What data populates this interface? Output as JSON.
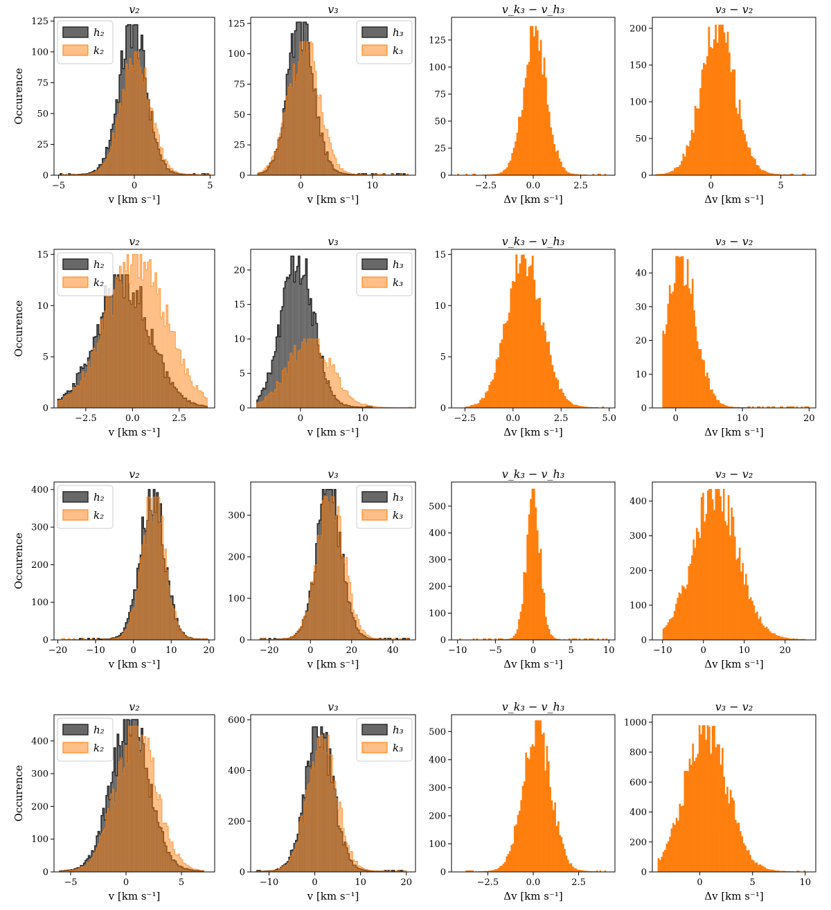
{
  "figure": {
    "colors": {
      "h": "#4d4d4d",
      "k": "#ff7f0e",
      "k_alpha": 0.5,
      "h_alpha": 0.85
    }
  },
  "chart_data": [
    {
      "row": 0,
      "col": 0,
      "type": "bar",
      "title": "v₂",
      "xlabel": "v [km s⁻¹]",
      "ylabel": "Occurence",
      "xlim": [
        -5.3,
        5.3
      ],
      "ylim": [
        0,
        128
      ],
      "xticks": [
        -5,
        0,
        5
      ],
      "xtick_labels": [
        "−5",
        "0",
        "5"
      ],
      "yticks": [
        0,
        25,
        50,
        75,
        100,
        125
      ],
      "legend": [
        "h₂",
        "k₂"
      ],
      "legend_loc": "upper-left",
      "series": [
        {
          "name": "h₂",
          "kind": "step",
          "mean": -0.1,
          "sd": 0.9,
          "peak": 122,
          "xmin": -5,
          "xmax": 5,
          "nbins": 90
        },
        {
          "name": "k₂",
          "kind": "fill",
          "mean": 0.1,
          "sd": 0.95,
          "peak": 100,
          "xmin": -5,
          "xmax": 5,
          "nbins": 90
        }
      ]
    },
    {
      "row": 0,
      "col": 1,
      "type": "bar",
      "title": "v₃",
      "xlabel": "v [km s⁻¹]",
      "ylabel": "",
      "xlim": [
        -7,
        16
      ],
      "ylim": [
        0,
        130
      ],
      "xticks": [
        0,
        10
      ],
      "xtick_labels": [
        "0",
        "10"
      ],
      "yticks": [
        0,
        25,
        50,
        75,
        100,
        125
      ],
      "legend": [
        "h₃",
        "k₃"
      ],
      "legend_loc": "upper-right",
      "series": [
        {
          "name": "h₃",
          "kind": "step",
          "mean": 0.0,
          "sd": 1.8,
          "peak": 126,
          "xmin": -6,
          "xmax": 15,
          "nbins": 90
        },
        {
          "name": "k₃",
          "kind": "fill",
          "mean": 0.4,
          "sd": 2.1,
          "peak": 110,
          "xmin": -6,
          "xmax": 15,
          "nbins": 90
        }
      ]
    },
    {
      "row": 0,
      "col": 2,
      "type": "bar",
      "title": "v_k₃ − v_h₃",
      "xlabel": "Δv [km s⁻¹]",
      "ylabel": "",
      "xlim": [
        -4.3,
        4.3
      ],
      "ylim": [
        0,
        146
      ],
      "xticks": [
        -2.5,
        0,
        2.5
      ],
      "xtick_labels": [
        "−2.5",
        "0.0",
        "2.5"
      ],
      "yticks": [
        0,
        25,
        50,
        75,
        100,
        125
      ],
      "legend": [],
      "legend_loc": "none",
      "series": [
        {
          "name": "",
          "kind": "solid",
          "mean": 0.1,
          "sd": 0.6,
          "peak": 138,
          "xmin": -4,
          "xmax": 4,
          "nbins": 90
        }
      ]
    },
    {
      "row": 0,
      "col": 3,
      "type": "bar",
      "title": "v₃ − v₂",
      "xlabel": "Δv [km s⁻¹]",
      "ylabel": "",
      "xlim": [
        -4.2,
        7.5
      ],
      "ylim": [
        0,
        215
      ],
      "xticks": [
        0,
        5
      ],
      "xtick_labels": [
        "0",
        "5"
      ],
      "yticks": [
        0,
        50,
        100,
        150,
        200
      ],
      "legend": [],
      "legend_loc": "none",
      "series": [
        {
          "name": "",
          "kind": "solid",
          "mean": 0.5,
          "sd": 1.2,
          "peak": 205,
          "xmin": -4,
          "xmax": 7,
          "nbins": 90
        }
      ]
    },
    {
      "row": 1,
      "col": 0,
      "type": "bar",
      "title": "v₂",
      "xlabel": "v [km s⁻¹]",
      "ylabel": "Occurence",
      "xlim": [
        -4.2,
        4.4
      ],
      "ylim": [
        0,
        15.5
      ],
      "xticks": [
        -2.5,
        0,
        2.5
      ],
      "xtick_labels": [
        "−2.5",
        "0.0",
        "2.5"
      ],
      "yticks": [
        0,
        5,
        10,
        15
      ],
      "legend": [
        "h₂",
        "k₂"
      ],
      "legend_loc": "upper-left",
      "series": [
        {
          "name": "h₂",
          "kind": "step",
          "mean": -0.5,
          "sd": 1.4,
          "peak": 13,
          "xmin": -4,
          "xmax": 4,
          "nbins": 80
        },
        {
          "name": "k₂",
          "kind": "fill",
          "mean": 0.2,
          "sd": 1.6,
          "peak": 15,
          "xmin": -4,
          "xmax": 4,
          "nbins": 80
        }
      ]
    },
    {
      "row": 1,
      "col": 1,
      "type": "bar",
      "title": "v₃",
      "xlabel": "v [km s⁻¹]",
      "ylabel": "",
      "xlim": [
        -8,
        18.5
      ],
      "ylim": [
        0,
        23
      ],
      "xticks": [
        0,
        10
      ],
      "xtick_labels": [
        "0",
        "10"
      ],
      "yticks": [
        0,
        5,
        10,
        15,
        20
      ],
      "legend": [
        "h₃",
        "k₃"
      ],
      "legend_loc": "upper-right",
      "series": [
        {
          "name": "h₃",
          "kind": "step",
          "mean": -0.5,
          "sd": 2.6,
          "peak": 22,
          "xmin": -7,
          "xmax": 12,
          "nbins": 80
        },
        {
          "name": "k₃",
          "kind": "fill",
          "mean": 1.5,
          "sd": 3.5,
          "peak": 10,
          "xmin": -7,
          "xmax": 18,
          "nbins": 80
        }
      ]
    },
    {
      "row": 1,
      "col": 2,
      "type": "bar",
      "title": "v_k₃ − v_h₃",
      "xlabel": "Δv [km s⁻¹]",
      "ylabel": "",
      "xlim": [
        -3.2,
        5.3
      ],
      "ylim": [
        0,
        15.5
      ],
      "xticks": [
        -2.5,
        0,
        2.5,
        5
      ],
      "xtick_labels": [
        "−2.5",
        "0.0",
        "2.5",
        "5.0"
      ],
      "yticks": [
        0,
        5,
        10,
        15
      ],
      "legend": [],
      "legend_loc": "none",
      "series": [
        {
          "name": "",
          "kind": "solid",
          "mean": 0.6,
          "sd": 0.9,
          "peak": 15,
          "xmin": -2.5,
          "xmax": 5,
          "nbins": 80
        }
      ]
    },
    {
      "row": 1,
      "col": 3,
      "type": "bar",
      "title": "v₃ − v₂",
      "xlabel": "Δv [km s⁻¹]",
      "ylabel": "",
      "xlim": [
        -3.5,
        21
      ],
      "ylim": [
        0,
        47
      ],
      "xticks": [
        0,
        10,
        20
      ],
      "xtick_labels": [
        "0",
        "10",
        "20"
      ],
      "yticks": [
        0,
        10,
        20,
        30,
        40
      ],
      "legend": [],
      "legend_loc": "none",
      "series": [
        {
          "name": "",
          "kind": "solid",
          "mean": 0.8,
          "sd": 2.2,
          "peak": 45,
          "xmin": -2,
          "xmax": 20,
          "nbins": 90
        }
      ]
    },
    {
      "row": 2,
      "col": 0,
      "type": "bar",
      "title": "v₂",
      "xlabel": "v [km s⁻¹]",
      "ylabel": "Occurence",
      "xlim": [
        -21,
        21.5
      ],
      "ylim": [
        0,
        420
      ],
      "xticks": [
        -20,
        -10,
        0,
        10,
        20
      ],
      "xtick_labels": [
        "−20",
        "−10",
        "0",
        "10",
        "20"
      ],
      "yticks": [
        0,
        100,
        200,
        300,
        400
      ],
      "legend": [
        "h₂",
        "k₂"
      ],
      "legend_loc": "upper-left",
      "series": [
        {
          "name": "h₂",
          "kind": "step",
          "mean": 5,
          "sd": 3.2,
          "peak": 400,
          "xmin": -19,
          "xmax": 20,
          "nbins": 90
        },
        {
          "name": "k₂",
          "kind": "fill",
          "mean": 5.3,
          "sd": 3.1,
          "peak": 380,
          "xmin": -19,
          "xmax": 20,
          "nbins": 90
        }
      ]
    },
    {
      "row": 2,
      "col": 1,
      "type": "bar",
      "title": "v₃",
      "xlabel": "v [km s⁻¹]",
      "ylabel": "",
      "xlim": [
        -29,
        51
      ],
      "ylim": [
        0,
        380
      ],
      "xticks": [
        -20,
        0,
        20,
        40
      ],
      "xtick_labels": [
        "−20",
        "0",
        "20",
        "40"
      ],
      "yticks": [
        0,
        100,
        200,
        300
      ],
      "legend": [
        "h₃",
        "k₃"
      ],
      "legend_loc": "upper-right",
      "series": [
        {
          "name": "h₃",
          "kind": "step",
          "mean": 9,
          "sd": 6,
          "peak": 362,
          "xmin": -25,
          "xmax": 48,
          "nbins": 90
        },
        {
          "name": "k₃",
          "kind": "fill",
          "mean": 10,
          "sd": 6.5,
          "peak": 345,
          "xmin": -25,
          "xmax": 48,
          "nbins": 90
        }
      ]
    },
    {
      "row": 2,
      "col": 2,
      "type": "bar",
      "title": "v_k₃ − v_h₃",
      "xlabel": "Δv [km s⁻¹]",
      "ylabel": "",
      "xlim": [
        -10.8,
        10.8
      ],
      "ylim": [
        0,
        590
      ],
      "xticks": [
        -10,
        -5,
        0,
        5,
        10
      ],
      "xtick_labels": [
        "−10",
        "−5",
        "0",
        "5",
        "10"
      ],
      "yticks": [
        0,
        100,
        200,
        300,
        400,
        500
      ],
      "legend": [],
      "legend_loc": "none",
      "series": [
        {
          "name": "",
          "kind": "solid",
          "mean": 0,
          "sd": 0.9,
          "peak": 565,
          "xmin": -10,
          "xmax": 10,
          "nbins": 90
        }
      ]
    },
    {
      "row": 2,
      "col": 3,
      "type": "bar",
      "title": "v₃ − v₂",
      "xlabel": "Δv [km s⁻¹]",
      "ylabel": "",
      "xlim": [
        -12.5,
        27.5
      ],
      "ylim": [
        0,
        455
      ],
      "xticks": [
        -10,
        0,
        10,
        20
      ],
      "xtick_labels": [
        "−10",
        "0",
        "10",
        "20"
      ],
      "yticks": [
        0,
        100,
        200,
        300,
        400
      ],
      "legend": [],
      "legend_loc": "none",
      "series": [
        {
          "name": "",
          "kind": "solid",
          "mean": 3,
          "sd": 5.5,
          "peak": 435,
          "xmin": -10,
          "xmax": 25,
          "nbins": 90
        }
      ]
    },
    {
      "row": 3,
      "col": 0,
      "type": "bar",
      "title": "v₂",
      "xlabel": "v [km s⁻¹]",
      "ylabel": "Occurence",
      "xlim": [
        -6.5,
        8
      ],
      "ylim": [
        0,
        480
      ],
      "xticks": [
        -5,
        0,
        5
      ],
      "xtick_labels": [
        "−5",
        "0",
        "5"
      ],
      "yticks": [
        0,
        100,
        200,
        300,
        400
      ],
      "legend": [
        "h₂",
        "k₂"
      ],
      "legend_loc": "upper-left",
      "series": [
        {
          "name": "h₂",
          "kind": "step",
          "mean": 0.4,
          "sd": 1.7,
          "peak": 465,
          "xmin": -6,
          "xmax": 7,
          "nbins": 90
        },
        {
          "name": "k₂",
          "kind": "fill",
          "mean": 0.9,
          "sd": 1.8,
          "peak": 445,
          "xmin": -6,
          "xmax": 7,
          "nbins": 90
        }
      ]
    },
    {
      "row": 3,
      "col": 1,
      "type": "bar",
      "title": "v₃",
      "xlabel": "v [km s⁻¹]",
      "ylabel": "",
      "xlim": [
        -14,
        22
      ],
      "ylim": [
        0,
        620
      ],
      "xticks": [
        -10,
        0,
        10,
        20
      ],
      "xtick_labels": [
        "−10",
        "0",
        "10",
        "20"
      ],
      "yticks": [
        0,
        200,
        400,
        600
      ],
      "legend": [
        "h₃",
        "k₃"
      ],
      "legend_loc": "upper-right",
      "series": [
        {
          "name": "h₃",
          "kind": "step",
          "mean": 1,
          "sd": 3,
          "peak": 572,
          "xmin": -13,
          "xmax": 20,
          "nbins": 90
        },
        {
          "name": "k₃",
          "kind": "fill",
          "mean": 1.6,
          "sd": 3.2,
          "peak": 540,
          "xmin": -13,
          "xmax": 20,
          "nbins": 90
        }
      ]
    },
    {
      "row": 3,
      "col": 2,
      "type": "bar",
      "title": "v_k₃ − v_h₃",
      "xlabel": "Δv [km s⁻¹]",
      "ylabel": "",
      "xlim": [
        -4.5,
        4.5
      ],
      "ylim": [
        0,
        560
      ],
      "xticks": [
        -2.5,
        0,
        2.5
      ],
      "xtick_labels": [
        "−2.5",
        "0.0",
        "2.5"
      ],
      "yticks": [
        0,
        100,
        200,
        300,
        400,
        500
      ],
      "legend": [],
      "legend_loc": "none",
      "series": [
        {
          "name": "",
          "kind": "solid",
          "mean": 0.2,
          "sd": 0.75,
          "peak": 540,
          "xmin": -4,
          "xmax": 4,
          "nbins": 90
        }
      ]
    },
    {
      "row": 3,
      "col": 3,
      "type": "bar",
      "title": "v₃ − v₂",
      "xlabel": "Δv [km s⁻¹]",
      "ylabel": "",
      "xlim": [
        -4.5,
        11
      ],
      "ylim": [
        0,
        1050
      ],
      "xticks": [
        0,
        5,
        10
      ],
      "xtick_labels": [
        "0",
        "5",
        "10"
      ],
      "yticks": [
        0,
        200,
        400,
        600,
        800,
        1000
      ],
      "legend": [],
      "legend_loc": "none",
      "series": [
        {
          "name": "",
          "kind": "solid",
          "mean": 0.6,
          "sd": 2,
          "peak": 980,
          "xmin": -4,
          "xmax": 10,
          "nbins": 90
        }
      ]
    }
  ]
}
